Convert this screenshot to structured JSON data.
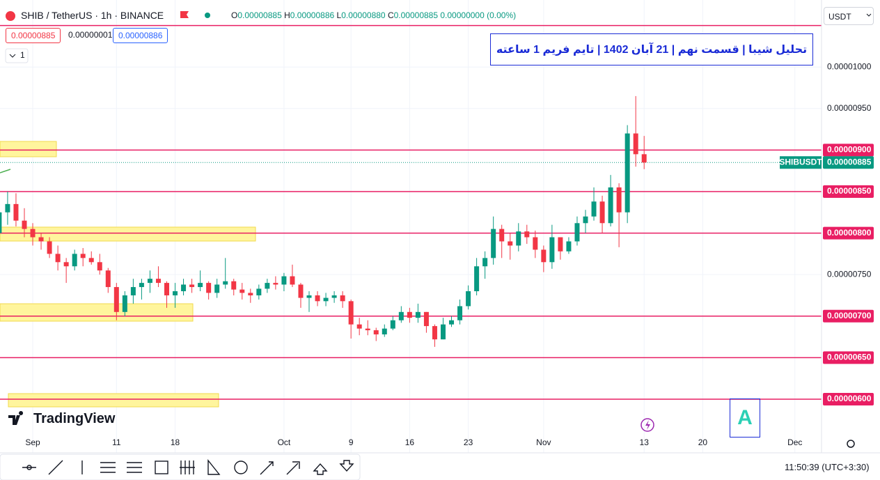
{
  "chart_data": {
    "type": "candlestick",
    "title": "تحلیل شیبا | قسمت نهم | 21 آبان 1402 | تایم فریم 1 ساعته",
    "up_color": "#089981",
    "down_color": "#f23645",
    "level_color": "#e91e63",
    "categories": [
      null,
      null,
      null,
      null,
      "Sep",
      null,
      null,
      null,
      null,
      null,
      null,
      null,
      null,
      null,
      "11",
      null,
      null,
      null,
      null,
      null,
      null,
      "18",
      null,
      null,
      null,
      null,
      null,
      null,
      null,
      null,
      null,
      null,
      null,
      null,
      "Oct",
      null,
      null,
      null,
      null,
      null,
      null,
      null,
      "9",
      null,
      null,
      null,
      null,
      null,
      null,
      "16",
      null,
      null,
      null,
      null,
      null,
      null,
      "23",
      null,
      null,
      null,
      null,
      null,
      null,
      null,
      null,
      "Nov",
      null,
      null,
      null,
      null,
      null,
      null,
      null,
      null,
      null,
      null,
      null,
      "13",
      null,
      null,
      null,
      null,
      null,
      null,
      "20",
      null,
      null,
      null,
      null,
      null,
      null,
      null,
      null,
      null,
      null,
      "Dec",
      null,
      null
    ],
    "open": [
      8e-06,
      8.25e-06,
      8.35e-06,
      8.15e-06,
      8.05e-06,
      7.95e-06,
      7.9e-06,
      7.75e-06,
      7.65e-06,
      7.6e-06,
      7.75e-06,
      7.7e-06,
      7.65e-06,
      7.55e-06,
      7.35e-06,
      7.05e-06,
      7.25e-06,
      7.35e-06,
      7.4e-06,
      7.45e-06,
      7.4e-06,
      7.25e-06,
      7.3e-06,
      7.38e-06,
      7.35e-06,
      7.4e-06,
      7.28e-06,
      7.38e-06,
      7.42e-06,
      7.32e-06,
      7.28e-06,
      7.25e-06,
      7.33e-06,
      7.4e-06,
      7.38e-06,
      7.48e-06,
      7.38e-06,
      7.22e-06,
      7.25e-06,
      7.18e-06,
      7.22e-06,
      7.25e-06,
      7.18e-06,
      6.9e-06,
      6.85e-06,
      6.83e-06,
      6.78e-06,
      6.85e-06,
      6.95e-06,
      7.05e-06,
      6.98e-06,
      7.05e-06,
      6.88e-06,
      6.72e-06,
      6.9e-06,
      6.95e-06,
      7.12e-06,
      7.3e-06,
      7.6e-06,
      7.7e-06,
      8.05e-06,
      7.9e-06,
      7.85e-06,
      8.02e-06,
      7.95e-06,
      7.8e-06,
      7.65e-06,
      7.95e-06,
      7.78e-06,
      7.9e-06,
      8.12e-06,
      8.2e-06,
      8.38e-06,
      8.12e-06,
      8.55e-06,
      8.25e-06,
      9.2e-06,
      8.95e-06,
      null,
      null,
      null,
      null,
      null,
      null,
      null,
      null,
      null,
      null,
      null,
      null,
      null,
      null,
      null,
      null,
      null,
      null,
      null,
      null
    ],
    "high": [
      8.3e-06,
      8.5e-06,
      8.48e-06,
      8.3e-06,
      8.12e-06,
      8e-06,
      7.95e-06,
      7.85e-06,
      7.7e-06,
      7.8e-06,
      7.82e-06,
      7.78e-06,
      7.75e-06,
      7.58e-06,
      7.4e-06,
      7.3e-06,
      7.45e-06,
      7.45e-06,
      7.55e-06,
      7.6e-06,
      7.42e-06,
      7.4e-06,
      7.45e-06,
      7.45e-06,
      7.55e-06,
      7.42e-06,
      7.45e-06,
      7.7e-06,
      7.45e-06,
      7.4e-06,
      7.33e-06,
      7.38e-06,
      7.45e-06,
      7.48e-06,
      7.52e-06,
      7.62e-06,
      7.4e-06,
      7.3e-06,
      7.3e-06,
      7.28e-06,
      7.3e-06,
      7.3e-06,
      7.2e-06,
      6.98e-06,
      6.95e-06,
      6.86e-06,
      6.9e-06,
      7e-06,
      7.12e-06,
      7.1e-06,
      7.15e-06,
      7.05e-06,
      6.9e-06,
      6.98e-06,
      7e-06,
      7.2e-06,
      7.37e-06,
      7.7e-06,
      7.78e-06,
      8.2e-06,
      8.1e-06,
      8e-06,
      8.12e-06,
      8.1e-06,
      8.03e-06,
      7.85e-06,
      8.1e-06,
      7.95e-06,
      7.95e-06,
      8.2e-06,
      8.28e-06,
      8.55e-06,
      8.45e-06,
      8.7e-06,
      8.6e-06,
      9.3e-06,
      9.65e-06,
      9.17e-06,
      null,
      null,
      null,
      null,
      null,
      null,
      null,
      null,
      null,
      null,
      null,
      null,
      null,
      null,
      null,
      null,
      null,
      null,
      null,
      null
    ],
    "low": [
      7.9e-06,
      8.1e-06,
      8.08e-06,
      7.95e-06,
      7.85e-06,
      7.8e-06,
      7.7e-06,
      7.55e-06,
      7.4e-06,
      7.55e-06,
      7.6e-06,
      7.62e-06,
      7.5e-06,
      7.28e-06,
      6.95e-06,
      7e-06,
      7.15e-06,
      7.2e-06,
      7.28e-06,
      7.35e-06,
      7.1e-06,
      7.1e-06,
      7.25e-06,
      7.28e-06,
      7.3e-06,
      7.2e-06,
      7.22e-06,
      7.33e-06,
      7.25e-06,
      7.2e-06,
      7.16e-06,
      7.2e-06,
      7.28e-06,
      7.32e-06,
      7.3e-06,
      7.35e-06,
      7.1e-06,
      7.05e-06,
      7.12e-06,
      7.12e-06,
      7.16e-06,
      7.1e-06,
      6.73e-06,
      6.77e-06,
      6.77e-06,
      6.7e-06,
      6.75e-06,
      6.83e-06,
      6.92e-06,
      6.92e-06,
      6.92e-06,
      6.8e-06,
      6.63e-06,
      6.72e-06,
      6.87e-06,
      6.9e-06,
      7.08e-06,
      7.25e-06,
      7.45e-06,
      7.62e-06,
      7.7e-06,
      7.68e-06,
      7.78e-06,
      7.87e-06,
      7.7e-06,
      7.53e-06,
      7.57e-06,
      7.68e-06,
      7.75e-06,
      7.85e-06,
      8e-06,
      8.15e-06,
      8e-06,
      8.08e-06,
      7.83e-06,
      8.12e-06,
      8.8e-06,
      8.77e-06,
      null,
      null,
      null,
      null,
      null,
      null,
      null,
      null,
      null,
      null,
      null,
      null,
      null,
      null,
      null,
      null,
      null,
      null,
      null,
      null
    ],
    "close": [
      8.25e-06,
      8.35e-06,
      8.15e-06,
      8.05e-06,
      7.95e-06,
      7.9e-06,
      7.75e-06,
      7.65e-06,
      7.6e-06,
      7.75e-06,
      7.7e-06,
      7.65e-06,
      7.55e-06,
      7.35e-06,
      7.05e-06,
      7.25e-06,
      7.35e-06,
      7.4e-06,
      7.45e-06,
      7.4e-06,
      7.25e-06,
      7.3e-06,
      7.38e-06,
      7.35e-06,
      7.4e-06,
      7.28e-06,
      7.38e-06,
      7.42e-06,
      7.32e-06,
      7.28e-06,
      7.25e-06,
      7.33e-06,
      7.4e-06,
      7.38e-06,
      7.48e-06,
      7.38e-06,
      7.22e-06,
      7.25e-06,
      7.18e-06,
      7.22e-06,
      7.25e-06,
      7.18e-06,
      6.9e-06,
      6.85e-06,
      6.83e-06,
      6.78e-06,
      6.85e-06,
      6.95e-06,
      7.05e-06,
      6.98e-06,
      7.05e-06,
      6.88e-06,
      6.72e-06,
      6.9e-06,
      6.95e-06,
      7.12e-06,
      7.3e-06,
      7.6e-06,
      7.7e-06,
      8.05e-06,
      7.9e-06,
      7.85e-06,
      8.02e-06,
      7.95e-06,
      7.8e-06,
      7.65e-06,
      7.95e-06,
      7.78e-06,
      7.9e-06,
      8.12e-06,
      8.2e-06,
      8.38e-06,
      8.12e-06,
      8.55e-06,
      8.25e-06,
      9.2e-06,
      8.95e-06,
      8.85e-06,
      null,
      null,
      null,
      null,
      null,
      null,
      null,
      null,
      null,
      null,
      null,
      null,
      null,
      null,
      null,
      null,
      null,
      null,
      null,
      null
    ],
    "ylim": [
      5.55e-06,
      1.05e-05
    ],
    "yticks": [
      {
        "value": 6e-06,
        "label": "0.00000600"
      },
      {
        "value": 6.5e-06,
        "label": "0.00000650"
      },
      {
        "value": 7e-06,
        "label": "0.00000700"
      },
      {
        "value": 7.5e-06,
        "label": "0.00000750"
      },
      {
        "value": 8e-06,
        "label": "0.00000800"
      },
      {
        "value": 8.5e-06,
        "label": "0.00000850"
      },
      {
        "value": 9e-06,
        "label": "0.00000900"
      },
      {
        "value": 9.5e-06,
        "label": "0.00000950"
      },
      {
        "value": 1e-05,
        "label": "0.00001000"
      }
    ],
    "levels": [
      6e-06,
      6.5e-06,
      7e-06,
      8e-06,
      8.5e-06,
      9e-06,
      1.05e-05
    ],
    "grid": true,
    "last_price": {
      "name": "SHIBUSDT",
      "value": 8.85e-06,
      "label": "0.00000885"
    }
  },
  "header": {
    "symbol": "SHIB / TetherUS · 1h · BINANCE",
    "ohlc": [
      {
        "key": "O",
        "value": "0.00000885"
      },
      {
        "key": "H",
        "value": "0.00000886"
      },
      {
        "key": "L",
        "value": "0.00000880"
      },
      {
        "key": "C",
        "value": "0.00000885"
      },
      {
        "key": "",
        "value": "0.00000000 (0.00%)"
      }
    ],
    "bid": "0.00000885",
    "spread": "0.00000001",
    "ask": "0.00000886",
    "indicators": "1",
    "currency": "USDT"
  },
  "footer": {
    "logo": "TradingView",
    "mark": "A",
    "time": "11:50:39 (UTC+3:30)"
  }
}
